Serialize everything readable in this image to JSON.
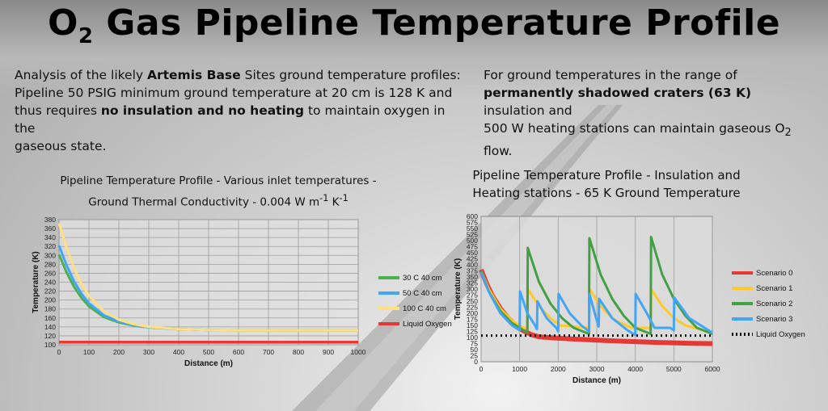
{
  "title": {
    "main_a": "O",
    "sub": "2",
    "main_b": " Gas Pipeline Temperature Profile"
  },
  "left_text": {
    "line1_a": "Analysis of the likely ",
    "line1_b": "Artemis Base",
    "line1_c": " Sites ground temperature profiles:",
    "line2": "Pipeline 50 PSIG minimum ground temperature at 20 cm is 128 K and",
    "line3_a": "thus requires ",
    "line3_b": "no insulation and no heating",
    "line3_c": " to maintain oxygen in the",
    "line4": "gaseous state."
  },
  "right_text": {
    "line1": "For ground temperatures in the range of",
    "line2_a": "permanently shadowed craters (63 K)",
    "line2_b": " insulation and",
    "line3_a": "500 W heating stations can maintain gaseous O",
    "line3_sub": "2",
    "line4": "flow."
  },
  "chart_data": [
    {
      "type": "line",
      "title_line1": "Pipeline Temperature Profile - Various inlet temperatures -",
      "title_line2_a": "Ground Thermal Conductivity - 0.004 W m",
      "title_sup1": "-1",
      "title_mid": " K",
      "title_sup2": "-1",
      "xlabel": "Distance (m)",
      "ylabel": "Temperature (K)",
      "xlim": [
        0,
        1000
      ],
      "ylim": [
        100,
        380
      ],
      "xticks": [
        0,
        100,
        200,
        300,
        400,
        500,
        600,
        700,
        800,
        900,
        1000
      ],
      "yticks": [
        100,
        120,
        140,
        160,
        180,
        200,
        220,
        240,
        260,
        280,
        300,
        320,
        340,
        360,
        380
      ],
      "grid": true,
      "legend_position": "right",
      "series": [
        {
          "name": "30 C 40 cm",
          "color": "#4caf50",
          "x": [
            0,
            25,
            50,
            75,
            100,
            150,
            200,
            250,
            300,
            400,
            500,
            600,
            700,
            800,
            900,
            1000
          ],
          "y": [
            302,
            262,
            230,
            205,
            186,
            162,
            150,
            143,
            139,
            135,
            133,
            132,
            132,
            132,
            132,
            132
          ]
        },
        {
          "name": "50 C 40 cm",
          "color": "#42a5f5",
          "x": [
            0,
            25,
            50,
            75,
            100,
            150,
            200,
            250,
            300,
            400,
            500,
            600,
            700,
            800,
            900,
            1000
          ],
          "y": [
            322,
            278,
            242,
            214,
            193,
            166,
            152,
            144,
            139,
            135,
            133,
            132,
            132,
            132,
            132,
            132
          ]
        },
        {
          "name": "100 C 40 cm",
          "color": "#ffe082",
          "x": [
            0,
            25,
            50,
            75,
            100,
            150,
            200,
            250,
            300,
            400,
            500,
            600,
            700,
            800,
            900,
            1000
          ],
          "y": [
            372,
            318,
            272,
            236,
            210,
            175,
            156,
            146,
            140,
            135,
            133,
            132,
            132,
            132,
            132,
            132
          ]
        },
        {
          "name": "Liquid Oxygen",
          "color": "#e53935",
          "x": [
            0,
            1000
          ],
          "y": [
            106,
            106
          ]
        }
      ]
    },
    {
      "type": "line",
      "title_line1": "Pipeline Temperature Profile - Insulation and",
      "title_line2": "Heating stations - 65 K Ground Temperature",
      "xlabel": "Distance (m)",
      "ylabel": "Temperature (K)",
      "xlim": [
        0,
        6000
      ],
      "ylim": [
        0,
        600
      ],
      "xticks": [
        0,
        1000,
        2000,
        3000,
        4000,
        5000,
        6000
      ],
      "yticks": [
        0,
        25,
        50,
        75,
        100,
        125,
        150,
        175,
        200,
        225,
        250,
        275,
        300,
        325,
        350,
        375,
        400,
        425,
        450,
        475,
        500,
        525,
        550,
        575,
        600
      ],
      "grid": "vertical",
      "legend_position": "right",
      "series": [
        {
          "name": "Scenario 0",
          "color": "#e53935",
          "x": [
            0,
            150,
            300,
            500,
            700,
            900,
            1100,
            1300,
            1500,
            2000,
            2500,
            3000,
            3500,
            4000,
            4500,
            5000,
            5500,
            6000
          ],
          "y": [
            380,
            320,
            270,
            220,
            180,
            150,
            128,
            112,
            103,
            97,
            93,
            89,
            86,
            83,
            80,
            78,
            76,
            75
          ]
        },
        {
          "name": "Scenario 1",
          "color": "#ffca28",
          "x": [
            0,
            200,
            500,
            800,
            1100,
            1200,
            1210,
            1500,
            1800,
            2050,
            2800,
            2810,
            3100,
            3400,
            3500,
            3900,
            4400,
            4410,
            4700,
            5000,
            5300,
            6000
          ],
          "y": [
            375,
            300,
            220,
            170,
            140,
            135,
            300,
            230,
            180,
            150,
            140,
            300,
            230,
            180,
            170,
            140,
            140,
            300,
            230,
            180,
            150,
            120
          ]
        },
        {
          "name": "Scenario 2",
          "color": "#43a047",
          "x": [
            0,
            200,
            500,
            800,
            1100,
            1200,
            1210,
            1500,
            1800,
            2100,
            2400,
            2800,
            2810,
            3100,
            3400,
            3700,
            4000,
            4400,
            4410,
            4700,
            5000,
            5300,
            5600,
            6000
          ],
          "y": [
            375,
            290,
            210,
            160,
            130,
            120,
            470,
            330,
            240,
            180,
            140,
            115,
            510,
            360,
            260,
            190,
            140,
            115,
            515,
            360,
            260,
            190,
            140,
            115
          ]
        },
        {
          "name": "Scenario 3",
          "color": "#42a5f5",
          "x": [
            0,
            200,
            500,
            800,
            1000,
            1010,
            1200,
            1400,
            1450,
            1460,
            1700,
            1950,
            2000,
            2010,
            2300,
            2600,
            2800,
            2810,
            2950,
            3050,
            3060,
            3400,
            3800,
            4000,
            4010,
            4300,
            4500,
            4900,
            5000,
            5010,
            5400,
            6000
          ],
          "y": [
            370,
            290,
            200,
            150,
            130,
            290,
            200,
            150,
            135,
            250,
            180,
            140,
            125,
            280,
            200,
            150,
            125,
            280,
            200,
            145,
            260,
            180,
            130,
            110,
            280,
            200,
            140,
            140,
            130,
            265,
            180,
            120
          ]
        },
        {
          "name": "Liquid Oxygen",
          "color": "#111111",
          "dashed": true,
          "x": [
            0,
            6000
          ],
          "y": [
            108,
            108
          ]
        }
      ]
    }
  ]
}
